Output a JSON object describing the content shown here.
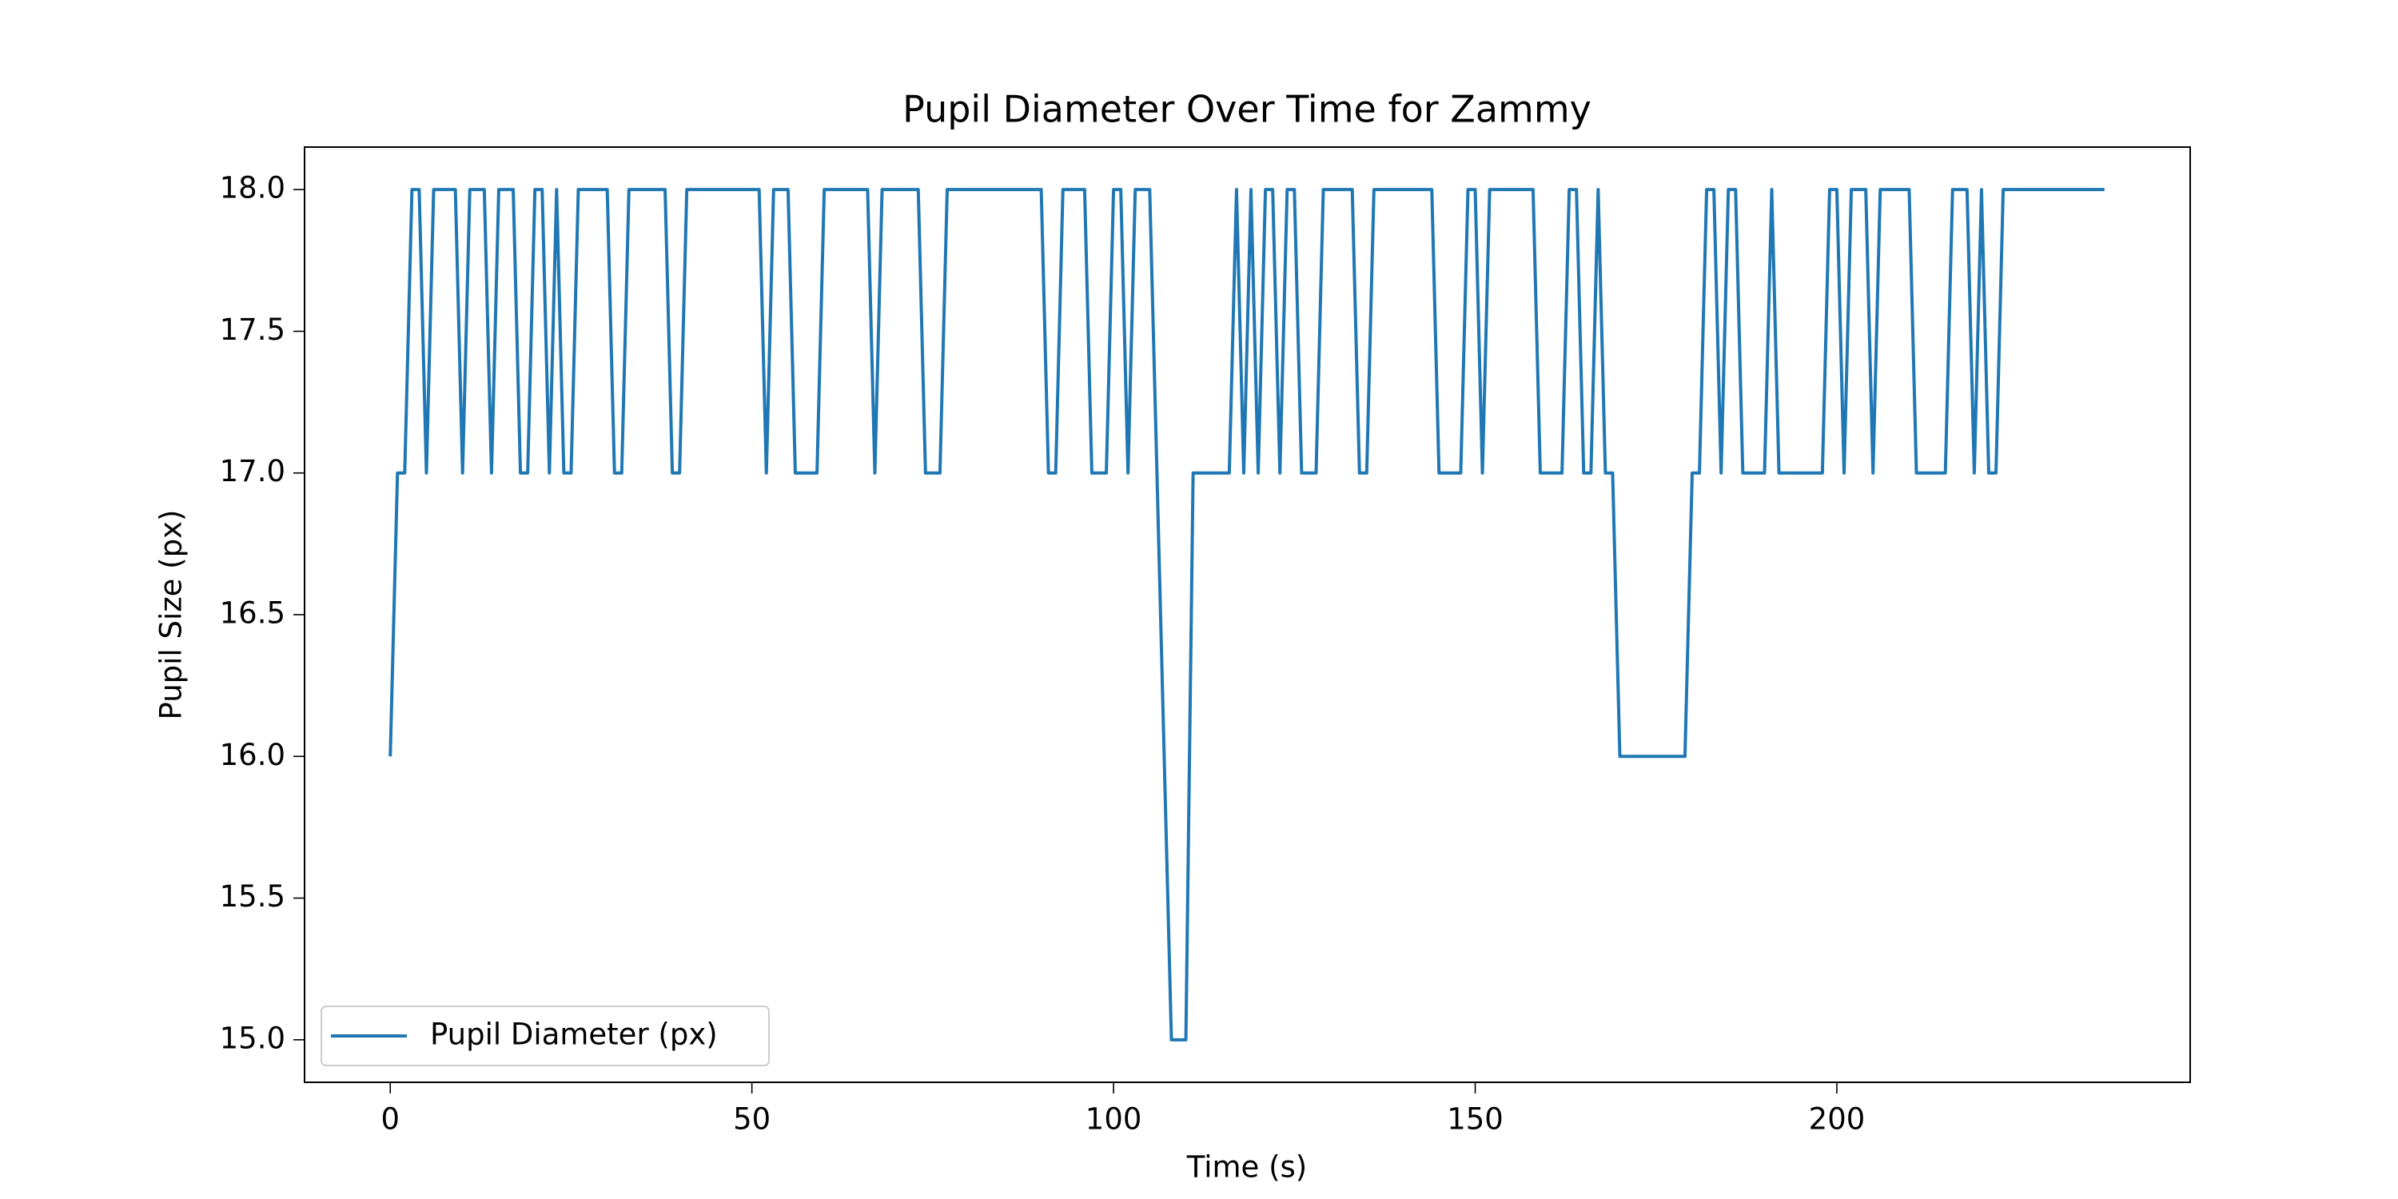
{
  "chart_data": {
    "type": "line",
    "title": "Pupil Diameter Over Time for Zammy",
    "x_label": "Time (s)",
    "y_label": "Pupil Size (px)",
    "x": [
      0,
      1,
      2,
      3,
      4,
      5,
      6,
      7,
      8,
      9,
      10,
      11,
      12,
      13,
      14,
      15,
      16,
      17,
      18,
      19,
      20,
      21,
      22,
      23,
      24,
      25,
      26,
      27,
      28,
      29,
      30,
      31,
      32,
      33,
      34,
      35,
      36,
      37,
      38,
      39,
      40,
      41,
      42,
      43,
      44,
      45,
      46,
      47,
      48,
      49,
      50,
      51,
      52,
      53,
      54,
      55,
      56,
      57,
      58,
      59,
      60,
      61,
      62,
      63,
      64,
      65,
      66,
      67,
      68,
      69,
      70,
      71,
      72,
      73,
      74,
      75,
      76,
      77,
      78,
      79,
      80,
      81,
      82,
      83,
      84,
      85,
      86,
      87,
      88,
      89,
      90,
      91,
      92,
      93,
      94,
      95,
      96,
      97,
      98,
      99,
      100,
      101,
      102,
      103,
      104,
      105,
      108,
      109,
      110,
      111,
      112,
      113,
      114,
      115,
      116,
      117,
      118,
      119,
      120,
      121,
      122,
      123,
      124,
      125,
      126,
      127,
      128,
      129,
      130,
      131,
      132,
      133,
      134,
      135,
      136,
      137,
      138,
      139,
      140,
      141,
      142,
      143,
      144,
      145,
      146,
      147,
      148,
      149,
      150,
      151,
      152,
      153,
      154,
      155,
      156,
      157,
      158,
      159,
      160,
      161,
      162,
      163,
      164,
      165,
      166,
      167,
      168,
      169,
      170,
      171,
      172,
      173,
      174,
      175,
      176,
      177,
      178,
      179,
      180,
      181,
      182,
      183,
      184,
      185,
      186,
      187,
      188,
      189,
      190,
      191,
      192,
      193,
      194,
      195,
      196,
      197,
      198,
      199,
      200,
      201,
      202,
      203,
      204,
      205,
      206,
      207,
      208,
      209,
      210,
      211,
      212,
      213,
      214,
      215,
      216,
      217,
      218,
      219,
      220,
      221,
      222,
      223,
      224,
      225,
      226,
      227,
      228,
      229,
      230,
      231,
      232,
      233,
      234,
      235,
      236,
      237
    ],
    "series": [
      {
        "name": "Pupil Diameter (px)",
        "color": "#1f77b4",
        "values": [
          16,
          17,
          17,
          18,
          18,
          17,
          18,
          18,
          18,
          18,
          17,
          18,
          18,
          18,
          17,
          18,
          18,
          18,
          17,
          17,
          18,
          18,
          17,
          18,
          17,
          17,
          18,
          18,
          18,
          18,
          18,
          17,
          17,
          18,
          18,
          18,
          18,
          18,
          18,
          17,
          17,
          18,
          18,
          18,
          18,
          18,
          18,
          18,
          18,
          18,
          18,
          18,
          17,
          18,
          18,
          18,
          17,
          17,
          17,
          17,
          18,
          18,
          18,
          18,
          18,
          18,
          18,
          17,
          18,
          18,
          18,
          18,
          18,
          18,
          17,
          17,
          17,
          18,
          18,
          18,
          18,
          18,
          18,
          18,
          18,
          18,
          18,
          18,
          18,
          18,
          18,
          17,
          17,
          18,
          18,
          18,
          18,
          17,
          17,
          17,
          18,
          18,
          17,
          18,
          18,
          18,
          15,
          15,
          15,
          17,
          17,
          17,
          17,
          17,
          17,
          18,
          17,
          18,
          17,
          18,
          18,
          17,
          18,
          18,
          17,
          17,
          17,
          18,
          18,
          18,
          18,
          18,
          17,
          17,
          18,
          18,
          18,
          18,
          18,
          18,
          18,
          18,
          18,
          17,
          17,
          17,
          17,
          18,
          18,
          17,
          18,
          18,
          18,
          18,
          18,
          18,
          18,
          17,
          17,
          17,
          17,
          18,
          18,
          17,
          17,
          18,
          17,
          17,
          16,
          16,
          16,
          16,
          16,
          16,
          16,
          16,
          16,
          16,
          17,
          17,
          18,
          18,
          17,
          18,
          18,
          17,
          17,
          17,
          17,
          18,
          17,
          17,
          17,
          17,
          17,
          17,
          17,
          18,
          18,
          17,
          18,
          18,
          18,
          17,
          18,
          18,
          18,
          18,
          18,
          17,
          17,
          17,
          17,
          17,
          18,
          18,
          18,
          17,
          18,
          17,
          17,
          18,
          18,
          18,
          18,
          18,
          18,
          18,
          18,
          18,
          18,
          18,
          18,
          18,
          18,
          18
        ]
      }
    ],
    "xlim": [
      -11.85,
      248.85
    ],
    "xticks": [
      0,
      50,
      100,
      150,
      200
    ],
    "ylim": [
      14.85,
      18.15
    ],
    "yticks": [
      {
        "value": 15,
        "label": "15.0"
      },
      {
        "value": 15.5,
        "label": "15.5"
      },
      {
        "value": 16,
        "label": "16.0"
      },
      {
        "value": 16.5,
        "label": "16.5"
      },
      {
        "value": 17,
        "label": "17.0"
      },
      {
        "value": 17.5,
        "label": "17.5"
      },
      {
        "value": 18,
        "label": "18.0"
      }
    ],
    "grid": false,
    "legend": "lower left"
  }
}
